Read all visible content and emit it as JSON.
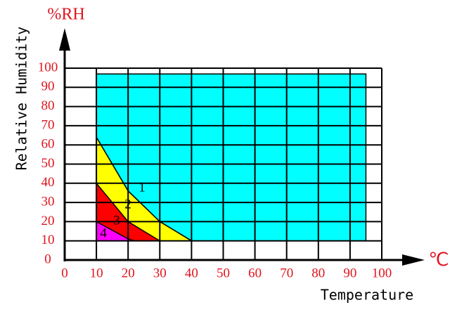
{
  "chart_data": {
    "type": "region",
    "y_label_unit": "%RH",
    "y_label": "Relative Humidity",
    "x_label_unit": "℃",
    "x_label": "Temperature",
    "xlim": [
      0,
      100
    ],
    "xticks": [
      0,
      10,
      20,
      30,
      40,
      50,
      60,
      70,
      80,
      90,
      100
    ],
    "ylim": [
      0,
      100
    ],
    "yticks": [
      0,
      10,
      20,
      30,
      40,
      50,
      60,
      70,
      80,
      90,
      100
    ],
    "grid": true,
    "regions": [
      {
        "color": "#00ffff",
        "x": [
          10,
          95,
          95,
          40,
          30,
          20,
          10
        ],
        "y": [
          97,
          97,
          10,
          10,
          20,
          36,
          64
        ]
      },
      {
        "color": "#ffff00",
        "x": [
          10,
          20,
          30,
          40,
          10
        ],
        "y": [
          64,
          36,
          20,
          10,
          10
        ]
      },
      {
        "color": "#ff0000",
        "x": [
          10,
          20,
          30,
          10
        ],
        "y": [
          40,
          20,
          10,
          10
        ]
      },
      {
        "color": "#ff00ff",
        "x": [
          10,
          20,
          22,
          10
        ],
        "y": [
          20,
          11,
          10,
          10
        ]
      }
    ],
    "annotations": [
      "1",
      "2",
      "3",
      "4"
    ]
  }
}
